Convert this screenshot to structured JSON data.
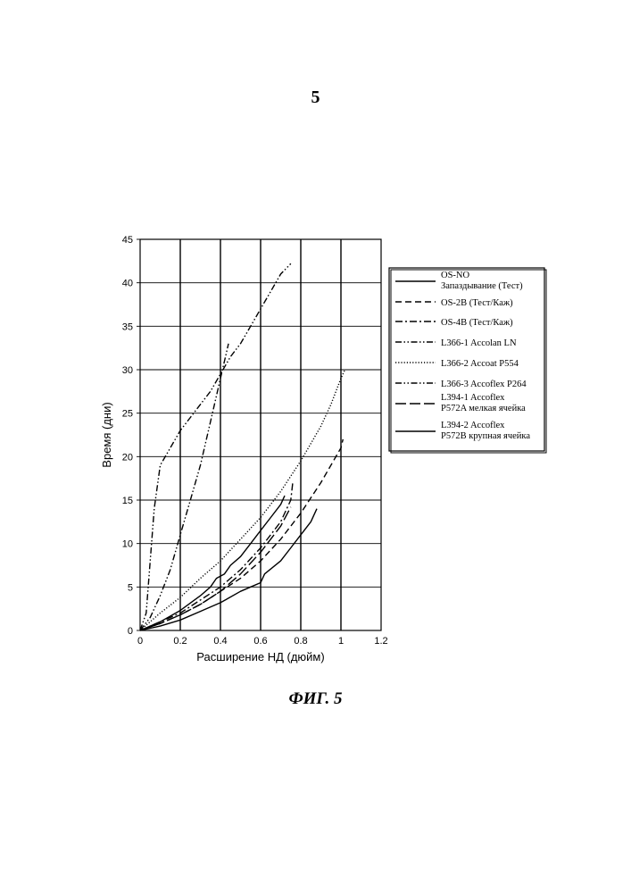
{
  "page": {
    "number": "5",
    "caption": "ФИГ. 5"
  },
  "chart_data": {
    "type": "line",
    "title": "",
    "xlabel": "Расширение НД (дюйм)",
    "ylabel": "Время (дни)",
    "xlim": [
      0,
      1.2
    ],
    "ylim": [
      0,
      45
    ],
    "xticks": [
      0,
      0.2,
      0.4,
      0.6,
      0.8,
      1,
      1.2
    ],
    "xtick_labels": [
      "0",
      "0.2",
      "0.4",
      "0.6",
      "0.8",
      "1",
      "1.2"
    ],
    "yticks": [
      0,
      5,
      10,
      15,
      20,
      25,
      30,
      35,
      40,
      45
    ],
    "ytick_labels": [
      "0",
      "5",
      "10",
      "15",
      "20",
      "25",
      "30",
      "35",
      "40",
      "45"
    ],
    "grid": true,
    "legend_position": "right",
    "series": [
      {
        "name": "OS-NO Запаздывание (Тест)",
        "line_style": "solid",
        "points": [
          [
            0,
            0
          ],
          [
            0.1,
            1
          ],
          [
            0.2,
            2.3
          ],
          [
            0.3,
            4
          ],
          [
            0.35,
            5
          ],
          [
            0.38,
            6
          ],
          [
            0.42,
            6.5
          ],
          [
            0.45,
            7.5
          ],
          [
            0.5,
            8.5
          ],
          [
            0.55,
            10
          ],
          [
            0.6,
            11.5
          ],
          [
            0.65,
            13
          ],
          [
            0.7,
            14.5
          ],
          [
            0.72,
            15.5
          ]
        ]
      },
      {
        "name": "OS-2B (Тест/Каж)",
        "line_style": "dashed",
        "points": [
          [
            0,
            0
          ],
          [
            0.1,
            0.8
          ],
          [
            0.2,
            1.8
          ],
          [
            0.3,
            3
          ],
          [
            0.4,
            4.5
          ],
          [
            0.5,
            6
          ],
          [
            0.6,
            8
          ],
          [
            0.7,
            10.5
          ],
          [
            0.8,
            13.5
          ],
          [
            0.9,
            17
          ],
          [
            1,
            21
          ],
          [
            1.01,
            22
          ]
        ]
      },
      {
        "name": "OS-4B (Тест/Каж)",
        "line_style": "dash-dot",
        "points": [
          [
            0,
            0
          ],
          [
            0.1,
            1
          ],
          [
            0.2,
            2
          ],
          [
            0.3,
            3.5
          ],
          [
            0.4,
            5
          ],
          [
            0.5,
            7
          ],
          [
            0.6,
            9.5
          ],
          [
            0.7,
            12.5
          ],
          [
            0.75,
            15
          ],
          [
            0.76,
            17
          ]
        ]
      },
      {
        "name": "L366-1 Accolan LN",
        "line_style": "dash-dot-dot",
        "points": [
          [
            0,
            0
          ],
          [
            0.03,
            2
          ],
          [
            0.05,
            8
          ],
          [
            0.07,
            14
          ],
          [
            0.1,
            19
          ],
          [
            0.15,
            21
          ],
          [
            0.2,
            23
          ],
          [
            0.25,
            24.5
          ],
          [
            0.3,
            26
          ],
          [
            0.35,
            27.5
          ],
          [
            0.4,
            29.5
          ],
          [
            0.45,
            31.5
          ],
          [
            0.5,
            33
          ],
          [
            0.55,
            35
          ],
          [
            0.6,
            37
          ],
          [
            0.65,
            39
          ],
          [
            0.7,
            41
          ],
          [
            0.75,
            42.2
          ]
        ]
      },
      {
        "name": "L366-2 Accoat P554",
        "line_style": "dotted",
        "points": [
          [
            0,
            0
          ],
          [
            0.1,
            2
          ],
          [
            0.2,
            3.8
          ],
          [
            0.3,
            6
          ],
          [
            0.4,
            8
          ],
          [
            0.5,
            10.5
          ],
          [
            0.6,
            13
          ],
          [
            0.7,
            16
          ],
          [
            0.8,
            19.5
          ],
          [
            0.9,
            23.5
          ],
          [
            0.95,
            26
          ],
          [
            1,
            29
          ],
          [
            1.02,
            30
          ]
        ]
      },
      {
        "name": "L366-3 Accoflex P264",
        "line_style": "dash-dot-dot",
        "points": [
          [
            0,
            0
          ],
          [
            0.05,
            1.5
          ],
          [
            0.1,
            4
          ],
          [
            0.15,
            7
          ],
          [
            0.2,
            11
          ],
          [
            0.25,
            15
          ],
          [
            0.3,
            19
          ],
          [
            0.35,
            24
          ],
          [
            0.4,
            29
          ],
          [
            0.43,
            32
          ],
          [
            0.44,
            33
          ]
        ]
      },
      {
        "name": "L394-1 Accoflex P572A мелкая ячейка",
        "line_style": "long-dash",
        "points": [
          [
            0,
            0
          ],
          [
            0.1,
            0.8
          ],
          [
            0.2,
            1.8
          ],
          [
            0.3,
            3
          ],
          [
            0.4,
            4.5
          ],
          [
            0.5,
            6.5
          ],
          [
            0.6,
            9
          ],
          [
            0.7,
            12
          ],
          [
            0.75,
            14.2
          ]
        ]
      },
      {
        "name": "L394-2 Accoflex P572B крупная ячейка",
        "line_style": "solid",
        "points": [
          [
            0,
            0
          ],
          [
            0.1,
            0.5
          ],
          [
            0.2,
            1.2
          ],
          [
            0.3,
            2.2
          ],
          [
            0.4,
            3.2
          ],
          [
            0.5,
            4.5
          ],
          [
            0.55,
            5
          ],
          [
            0.6,
            5.5
          ],
          [
            0.62,
            6.5
          ],
          [
            0.7,
            8
          ],
          [
            0.75,
            9.5
          ],
          [
            0.8,
            11
          ],
          [
            0.85,
            12.5
          ],
          [
            0.88,
            14
          ]
        ]
      }
    ]
  }
}
